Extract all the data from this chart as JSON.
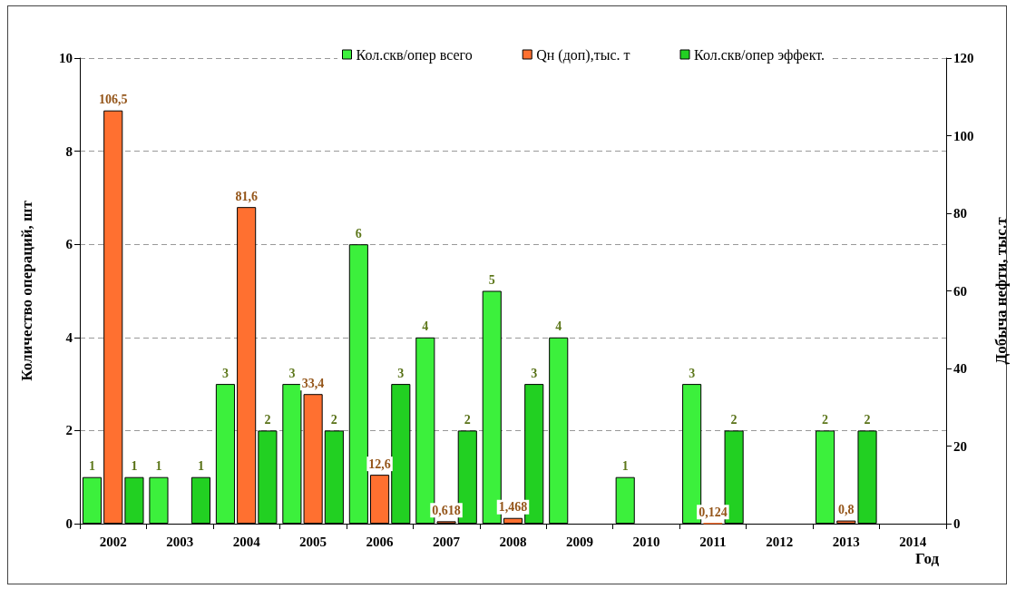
{
  "chart_data": {
    "type": "bar",
    "xlabel": "Год",
    "ylabel": "Количество операций, шт",
    "y2label": "Добыча нефти, тыс.т",
    "categories": [
      "2002",
      "2003",
      "2004",
      "2005",
      "2006",
      "2007",
      "2008",
      "2009",
      "2010",
      "2011",
      "2012",
      "2013",
      "2014"
    ],
    "series": [
      {
        "name": "Кол.скв/опер всего",
        "color": "#3cf03c",
        "values": [
          1,
          1,
          3,
          3,
          6,
          4,
          5,
          4,
          1,
          3,
          null,
          2,
          null
        ],
        "value_labels": [
          "1",
          "1",
          "3",
          "3",
          "6",
          "4",
          "5",
          "4",
          "1",
          "3",
          null,
          "2",
          null
        ]
      },
      {
        "name": "Qн (доп),тыс. т",
        "color": "#ff7030",
        "axis": "y2",
        "values": [
          106.5,
          null,
          81.6,
          33.4,
          12.6,
          0.618,
          1.468,
          null,
          null,
          0.124,
          null,
          0.8,
          null
        ],
        "value_labels": [
          "106,5",
          null,
          "81,6",
          "33,4",
          "12,6",
          "0,618",
          "1,468",
          null,
          null,
          "0,124",
          null,
          "0,8",
          null
        ]
      },
      {
        "name": "Кол.скв/опер эффект.",
        "color": "#22d022",
        "values": [
          1,
          1,
          2,
          2,
          3,
          2,
          3,
          null,
          null,
          2,
          null,
          2,
          null
        ],
        "value_labels": [
          "1",
          "1",
          "2",
          "2",
          "3",
          "2",
          "3",
          null,
          null,
          "2",
          null,
          "2",
          null
        ]
      }
    ],
    "ylim": [
      0,
      10
    ],
    "yticks": [
      0,
      2,
      4,
      6,
      8,
      10
    ],
    "y2lim": [
      0,
      120
    ],
    "y2ticks": [
      0,
      20,
      40,
      60,
      80,
      100,
      120
    ],
    "grid": "y",
    "legend": "top"
  }
}
